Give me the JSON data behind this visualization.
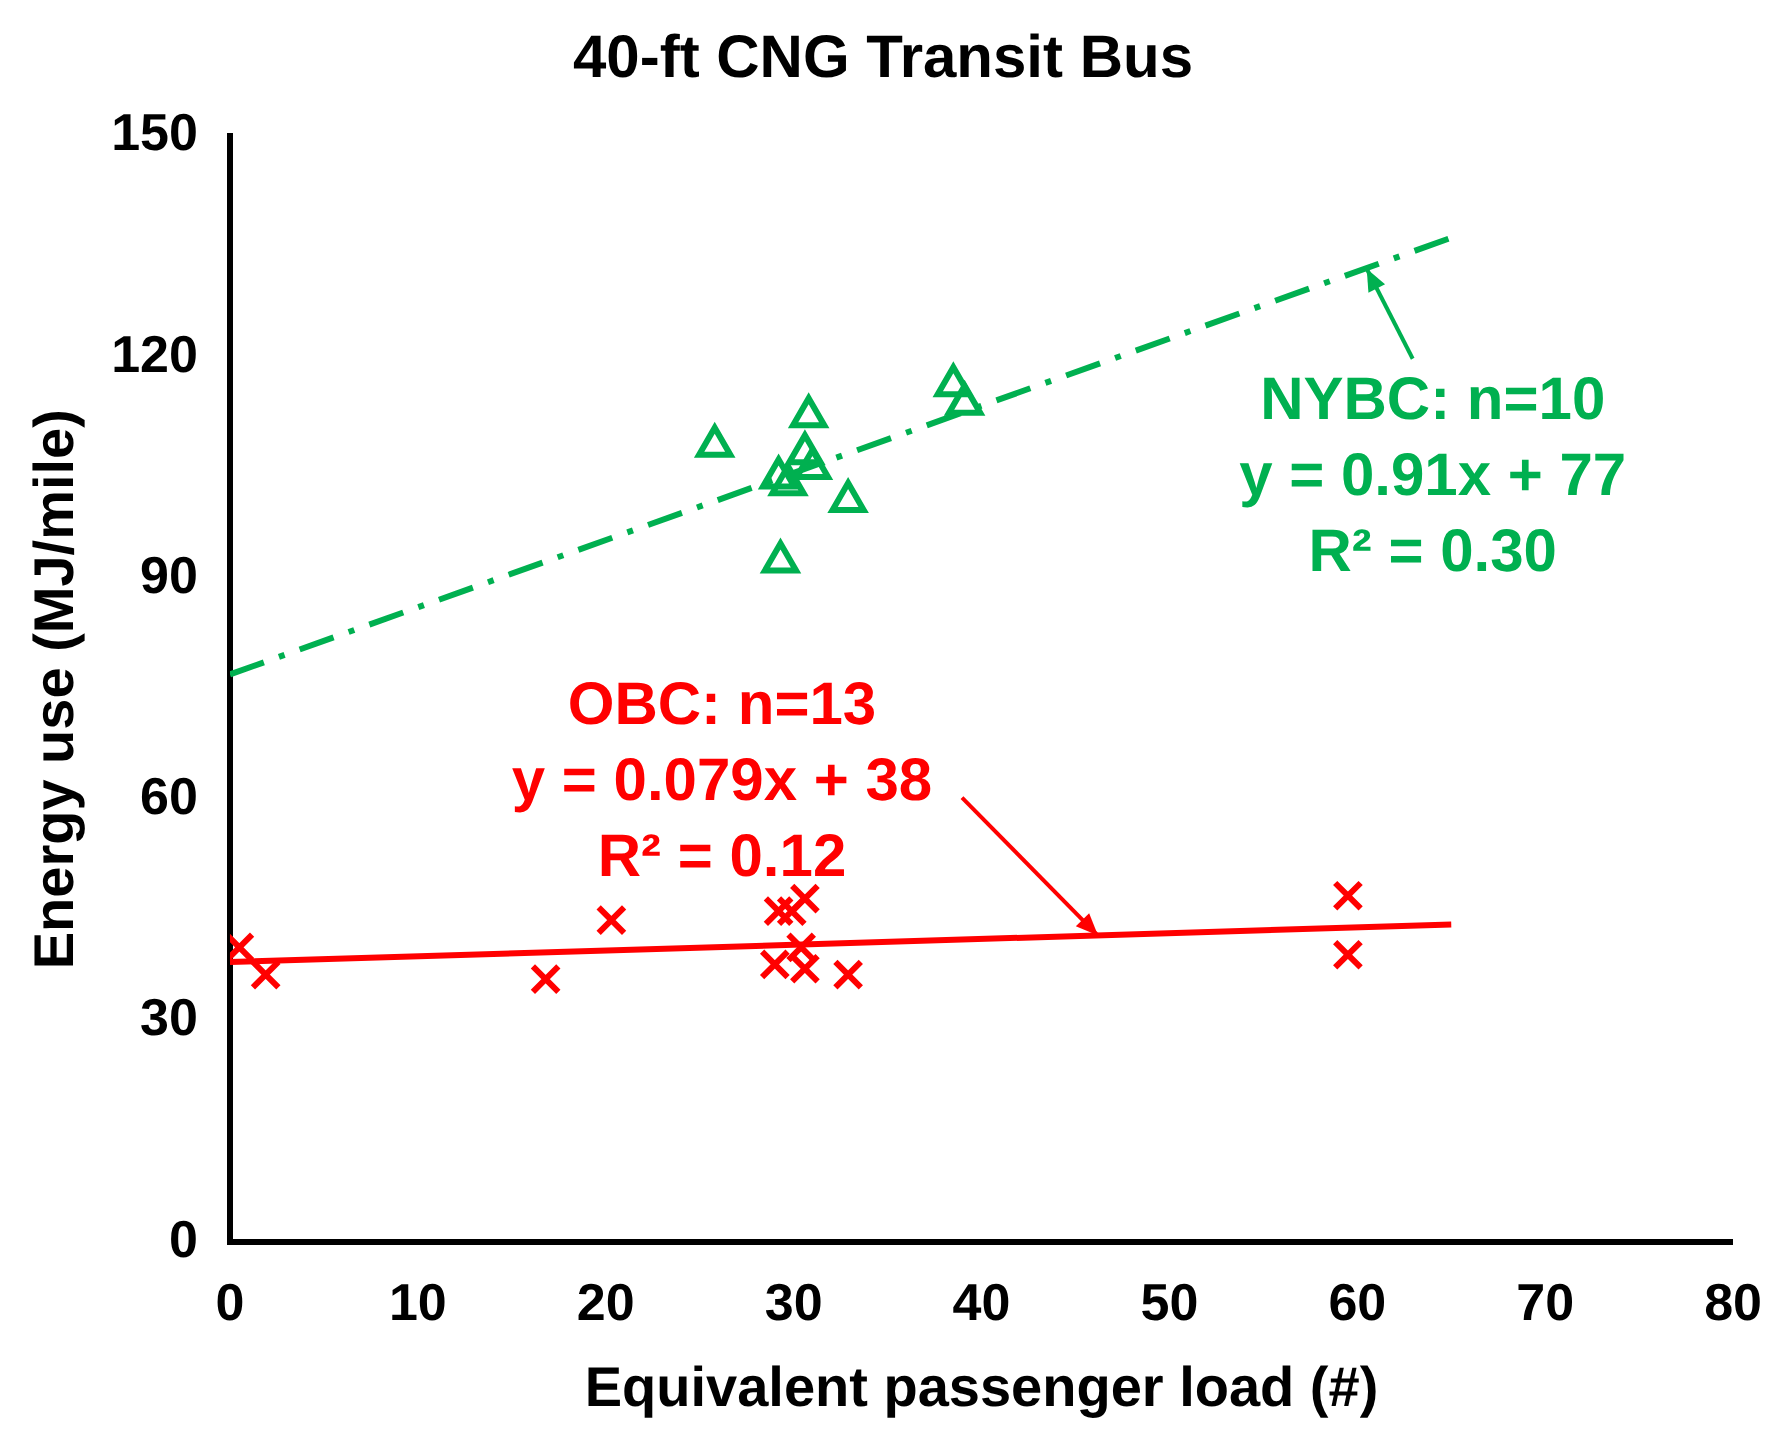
{
  "chart_data": {
    "type": "scatter",
    "title": "40-ft CNG Transit Bus",
    "xlabel": "Equivalent passenger load (#)",
    "ylabel": "Energy use (MJ/mile)",
    "xlim": [
      0,
      80
    ],
    "xticks": [
      0,
      10,
      20,
      30,
      40,
      50,
      60,
      70,
      80
    ],
    "ylim": [
      0,
      150
    ],
    "yticks": [
      0,
      30,
      60,
      90,
      120,
      150
    ],
    "grid": false,
    "legend": false,
    "series": [
      {
        "type": "scatter",
        "marker": "cross",
        "color": "#ff0000",
        "x": [
          0.5,
          1.9,
          16.8,
          20.3,
          29.0,
          29.2,
          29.9,
          30.6,
          30.4,
          30.6,
          32.9,
          59.5,
          59.5
        ],
        "values": [
          40,
          36.3,
          35.7,
          43.7,
          37.7,
          44.9,
          44.9,
          46.6,
          40,
          37.1,
          36.3,
          47,
          39
        ]
      },
      {
        "type": "scatter",
        "marker": "triangle",
        "color": "#00b050",
        "x": [
          25.8,
          29.2,
          29.3,
          30.8,
          30.6,
          31.0,
          29.7,
          32.9,
          38.5,
          39.1
        ],
        "values": [
          108,
          103.7,
          92.3,
          112,
          107,
          105,
          102.8,
          100.5,
          116.2,
          113.7
        ]
      },
      {
        "type": "line",
        "marker": "none",
        "line_style": "solid",
        "color": "#ff0000",
        "x": [
          0,
          65
        ],
        "values": [
          38,
          43.1
        ]
      },
      {
        "type": "line",
        "marker": "none",
        "line_style": "dashed",
        "color": "#00b050",
        "x": [
          0,
          65
        ],
        "values": [
          77,
          136.2
        ]
      }
    ],
    "annotations": [
      {
        "text": "OBC: n=13\ny = 0.079x + 38\nR² = 0.12",
        "x": 46.2,
        "y": 41.6
      },
      {
        "text": "NYBC: n=10\ny = 0.91x + 77\nR² = 0.30",
        "x": 60.5,
        "y": 132
      }
    ]
  }
}
